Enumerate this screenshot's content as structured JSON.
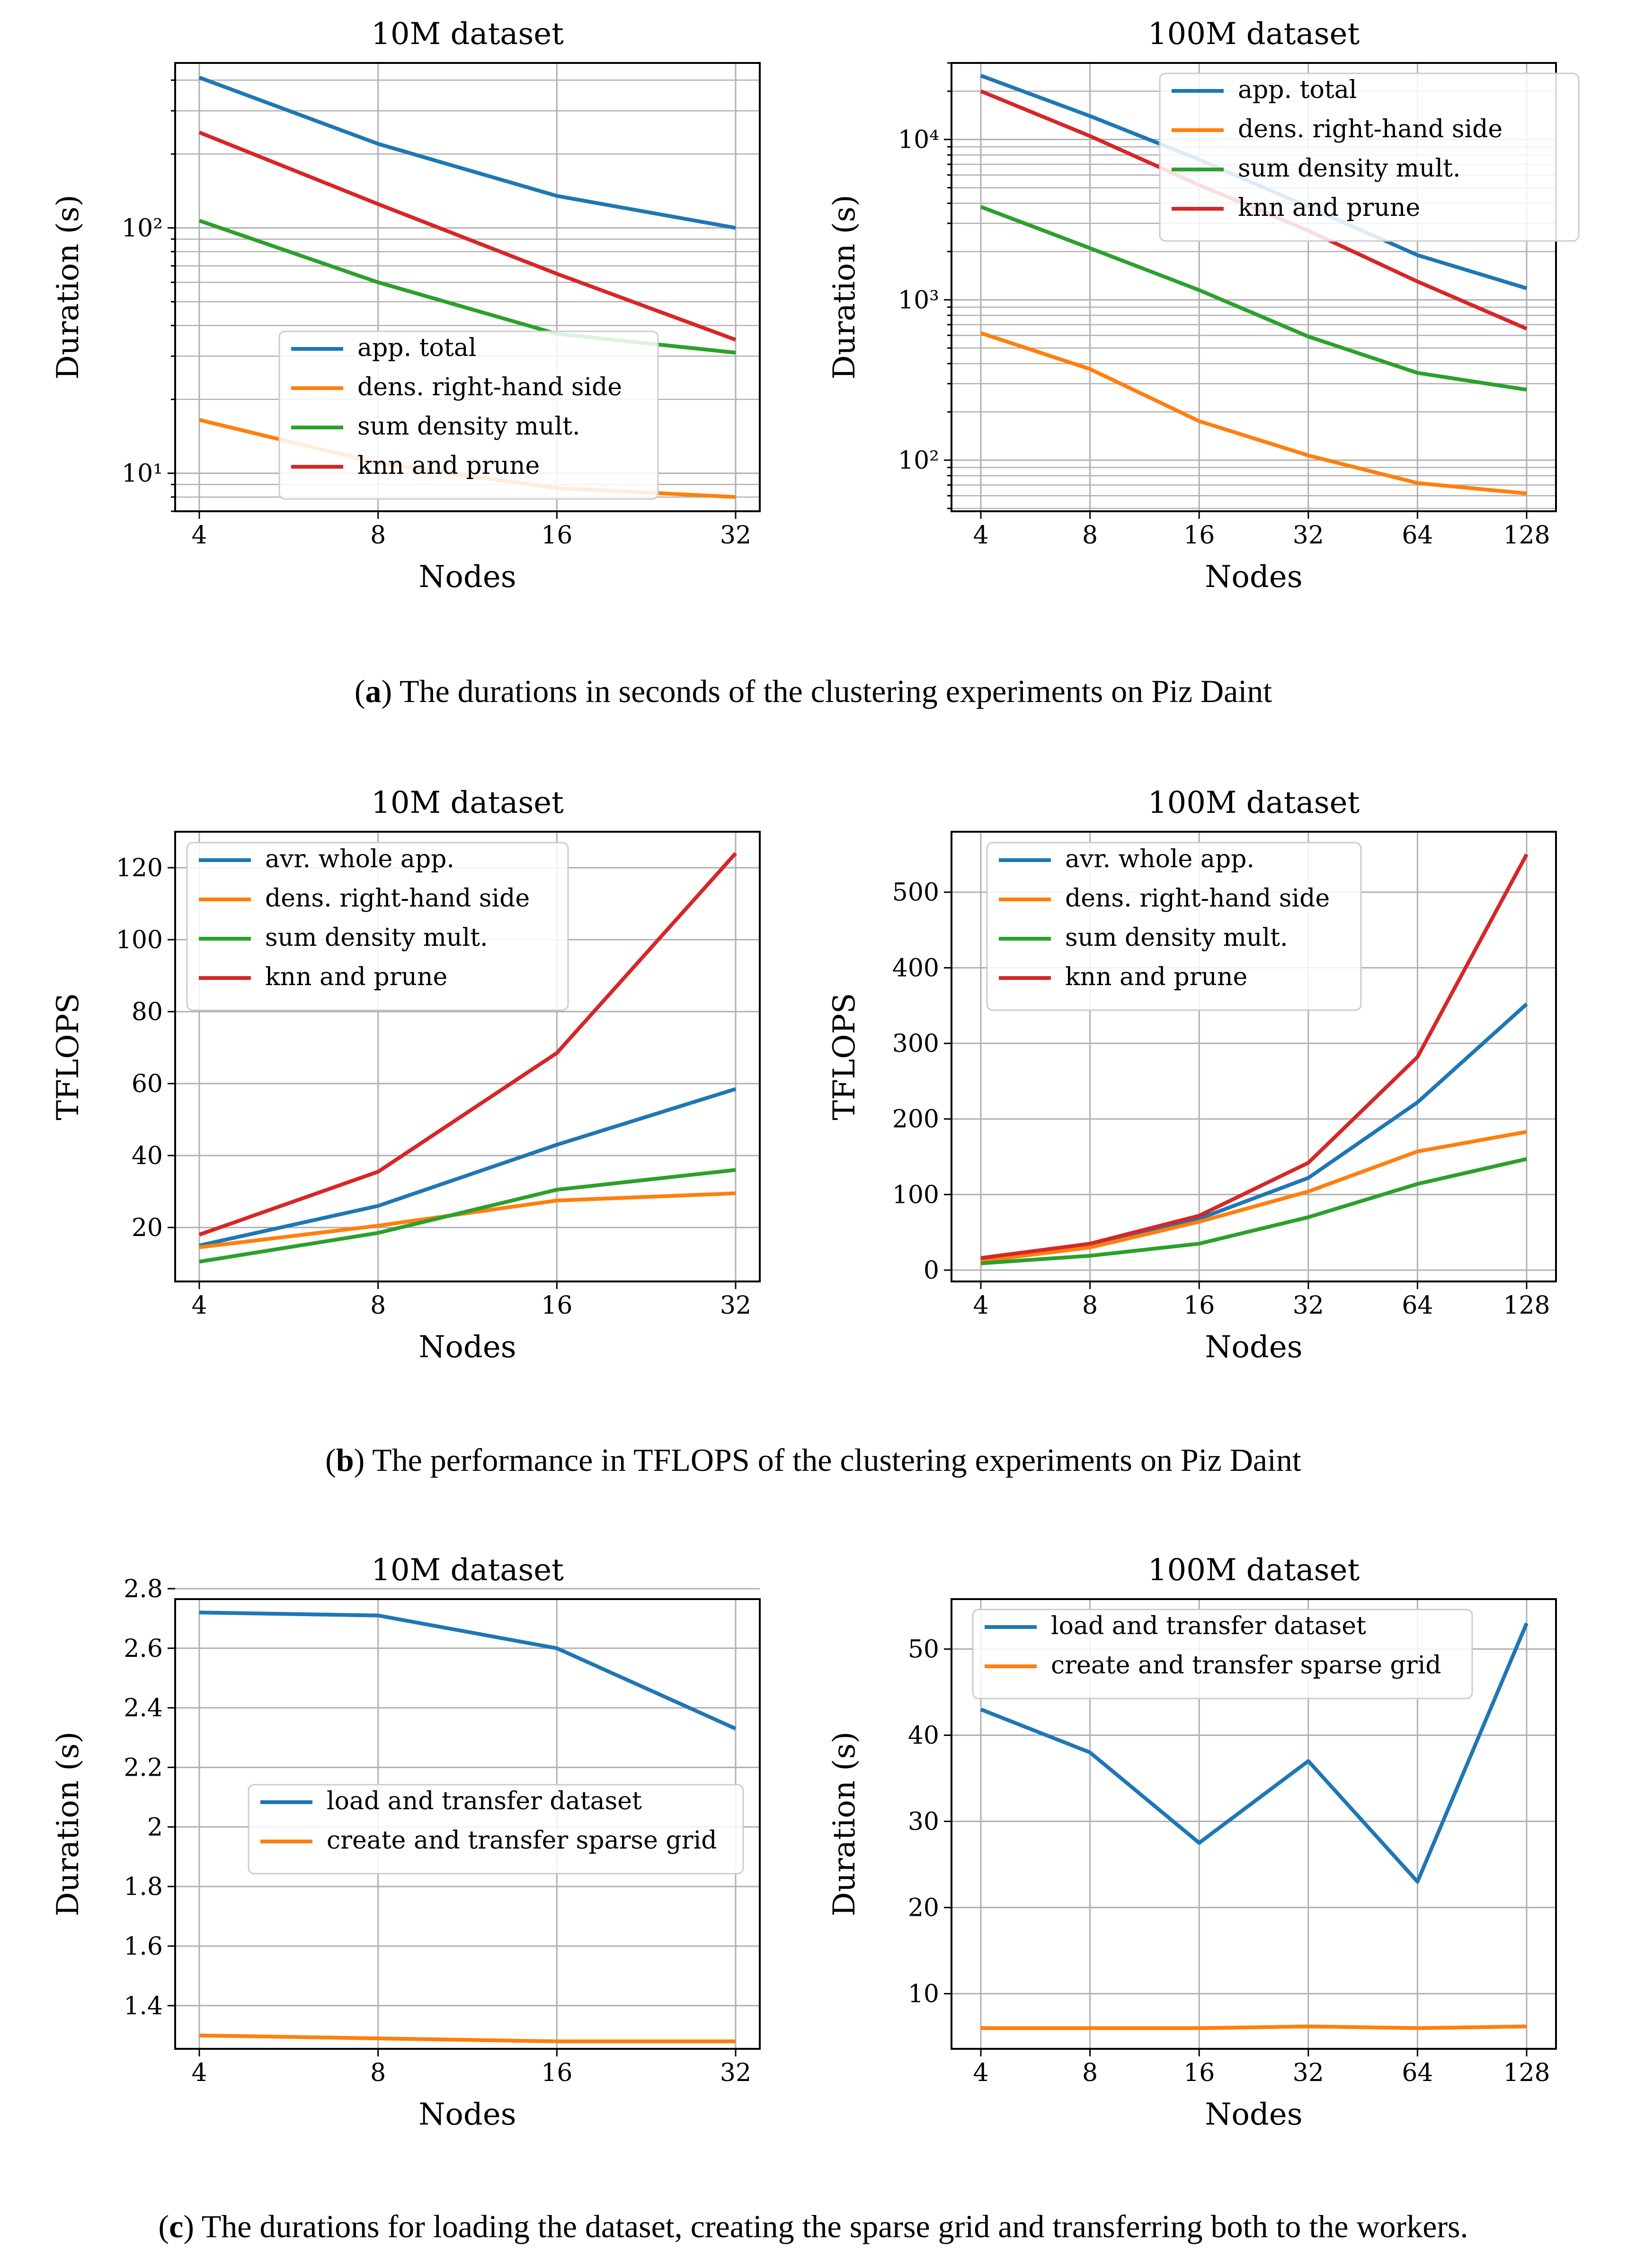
{
  "captions": {
    "a": {
      "label": "a",
      "text": " The durations in seconds of the clustering experiments on Piz Daint"
    },
    "b": {
      "label": "b",
      "text": " The performance in TFLOPS of the clustering experiments on Piz Daint"
    },
    "c": {
      "label": "c",
      "text": " The durations for loading the dataset, creating the sparse grid and transferring both to the workers."
    }
  },
  "colors": {
    "blue": "#1f77b4",
    "orange": "#ff7f0e",
    "green": "#2ca02c",
    "red": "#d62728"
  },
  "chart_data": [
    {
      "type": "line",
      "title": "10M dataset",
      "xlabel": "Nodes",
      "ylabel": "Duration (s)",
      "yscale": "log",
      "ylim": [
        7,
        470
      ],
      "ymajor_ticks": [
        10,
        100
      ],
      "ymajor_labels": [
        "10¹",
        "10²"
      ],
      "x": [
        "4",
        "8",
        "16",
        "32"
      ],
      "legend_position": "center",
      "series": [
        {
          "name": "app. total",
          "color": "blue",
          "values": [
            410,
            220,
            135,
            100
          ]
        },
        {
          "name": "dens. right-hand side",
          "color": "orange",
          "values": [
            16.5,
            11,
            8.7,
            8.0
          ]
        },
        {
          "name": "sum density mult.",
          "color": "green",
          "values": [
            107,
            60,
            37,
            31
          ]
        },
        {
          "name": "knn and prune",
          "color": "red",
          "values": [
            245,
            125,
            65,
            35
          ]
        }
      ]
    },
    {
      "type": "line",
      "title": "100M dataset",
      "xlabel": "Nodes",
      "ylabel": "Duration (s)",
      "yscale": "log",
      "ylim": [
        48,
        30000
      ],
      "ymajor_ticks": [
        100,
        1000,
        10000
      ],
      "ymajor_labels": [
        "10²",
        "10³",
        "10⁴"
      ],
      "x": [
        "4",
        "8",
        "16",
        "32",
        "64",
        "128"
      ],
      "legend_position": "top-right",
      "series": [
        {
          "name": "app. total",
          "color": "blue",
          "values": [
            25000,
            14000,
            7500,
            3800,
            1900,
            1180
          ]
        },
        {
          "name": "dens. right-hand side",
          "color": "orange",
          "values": [
            620,
            370,
            175,
            107,
            72,
            62
          ]
        },
        {
          "name": "sum density mult.",
          "color": "green",
          "values": [
            3800,
            2100,
            1150,
            590,
            350,
            275
          ]
        },
        {
          "name": "knn and prune",
          "color": "red",
          "values": [
            20000,
            10500,
            5200,
            2700,
            1300,
            660
          ]
        }
      ]
    },
    {
      "type": "line",
      "title": "10M dataset",
      "xlabel": "Nodes",
      "ylabel": "TFLOPS",
      "yscale": "linear",
      "ylim": [
        5,
        130
      ],
      "yticks": [
        20,
        40,
        60,
        80,
        100,
        120
      ],
      "x": [
        "4",
        "8",
        "16",
        "32"
      ],
      "legend_position": "top-left",
      "series": [
        {
          "name": "avr. whole app.",
          "color": "blue",
          "values": [
            15,
            26,
            43,
            58.5
          ]
        },
        {
          "name": "dens. right-hand side",
          "color": "orange",
          "values": [
            14.5,
            20.5,
            27.5,
            29.5
          ]
        },
        {
          "name": "sum density mult.",
          "color": "green",
          "values": [
            10.5,
            18.5,
            30.5,
            36
          ]
        },
        {
          "name": "knn and prune",
          "color": "red",
          "values": [
            18,
            35.5,
            68.5,
            124
          ]
        }
      ]
    },
    {
      "type": "line",
      "title": "100M dataset",
      "xlabel": "Nodes",
      "ylabel": "TFLOPS",
      "yscale": "linear",
      "ylim": [
        -15,
        580
      ],
      "yticks": [
        0,
        100,
        200,
        300,
        400,
        500
      ],
      "x": [
        "4",
        "8",
        "16",
        "32",
        "64",
        "128"
      ],
      "legend_position": "top-left",
      "series": [
        {
          "name": "avr. whole app.",
          "color": "blue",
          "values": [
            12,
            32,
            68,
            122,
            222,
            352
          ]
        },
        {
          "name": "dens. right-hand side",
          "color": "orange",
          "values": [
            12,
            30,
            64,
            104,
            157,
            183
          ]
        },
        {
          "name": "sum density mult.",
          "color": "green",
          "values": [
            9,
            19,
            35,
            70,
            114,
            147
          ]
        },
        {
          "name": "knn and prune",
          "color": "red",
          "values": [
            16,
            35,
            72,
            142,
            282,
            550
          ]
        }
      ]
    },
    {
      "type": "line",
      "title": "10M dataset",
      "xlabel": "Nodes",
      "ylabel": "Duration (s)",
      "yscale": "linear",
      "ylim": [
        1.255,
        2.765
      ],
      "yticks": [
        1.4,
        1.6,
        1.8,
        2.0,
        2.2,
        2.4,
        2.6,
        2.8
      ],
      "x": [
        "4",
        "8",
        "16",
        "32"
      ],
      "legend_position": "center-right",
      "series": [
        {
          "name": "load and transfer dataset",
          "color": "blue",
          "values": [
            2.72,
            2.71,
            2.6,
            2.33
          ]
        },
        {
          "name": "create and transfer sparse grid",
          "color": "orange",
          "values": [
            1.3,
            1.29,
            1.28,
            1.28
          ]
        }
      ]
    },
    {
      "type": "line",
      "title": "100M dataset",
      "xlabel": "Nodes",
      "ylabel": "Duration (s)",
      "yscale": "linear",
      "ylim": [
        3.6,
        55.8
      ],
      "yticks": [
        10,
        20,
        30,
        40,
        50
      ],
      "x": [
        "4",
        "8",
        "16",
        "32",
        "64",
        "128"
      ],
      "legend_position": "top-left",
      "series": [
        {
          "name": "load and transfer dataset",
          "color": "blue",
          "values": [
            43,
            38,
            27.5,
            37,
            23,
            53
          ]
        },
        {
          "name": "create and transfer sparse grid",
          "color": "orange",
          "values": [
            6,
            6,
            6,
            6.2,
            6,
            6.2
          ]
        }
      ]
    }
  ]
}
